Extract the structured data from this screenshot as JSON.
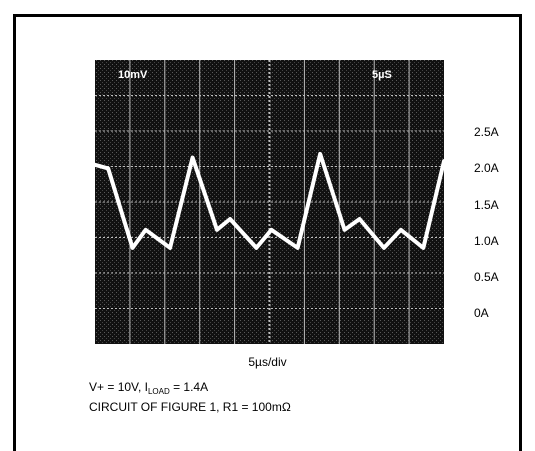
{
  "chart_data": {
    "type": "line",
    "title": "",
    "xlabel": "5µs/div",
    "ylabel": "",
    "x": [
      0,
      0.35,
      1.0,
      1.35,
      2.0,
      2.6,
      3.25,
      3.6,
      4.3,
      4.7,
      5.4,
      6.0,
      6.65,
      7.05,
      7.7,
      8.15,
      8.75,
      9.3
    ],
    "series": [
      {
        "name": "",
        "values": [
          2.05,
          2.0,
          0.9,
          1.15,
          0.9,
          2.15,
          1.15,
          1.3,
          0.9,
          1.15,
          0.9,
          2.2,
          1.15,
          1.3,
          0.9,
          1.15,
          0.9,
          2.1
        ]
      }
    ],
    "ytick_labels": [
      "2.5A",
      "2.0A",
      "1.5A",
      "1.0A",
      "0.5A",
      "0A"
    ],
    "ytick_values": [
      2.5,
      2.0,
      1.5,
      1.0,
      0.5,
      0.0
    ],
    "ylim": [
      -0.43,
      3.5
    ],
    "xlim": [
      0,
      9.3
    ],
    "grid": true,
    "screen_labels": {
      "left": "10mV",
      "right": "5µS"
    }
  },
  "notes": {
    "line1_prefix": "V+ = 10V, I",
    "line1_sub": "LOAD",
    "line1_suffix": " = 1.4A",
    "line2": "CIRCUIT OF FIGURE 1, R1 = 100mΩ"
  },
  "colors": {
    "screen": "#111111",
    "trace": "#ffffff",
    "grid": "#bdbdbd"
  }
}
